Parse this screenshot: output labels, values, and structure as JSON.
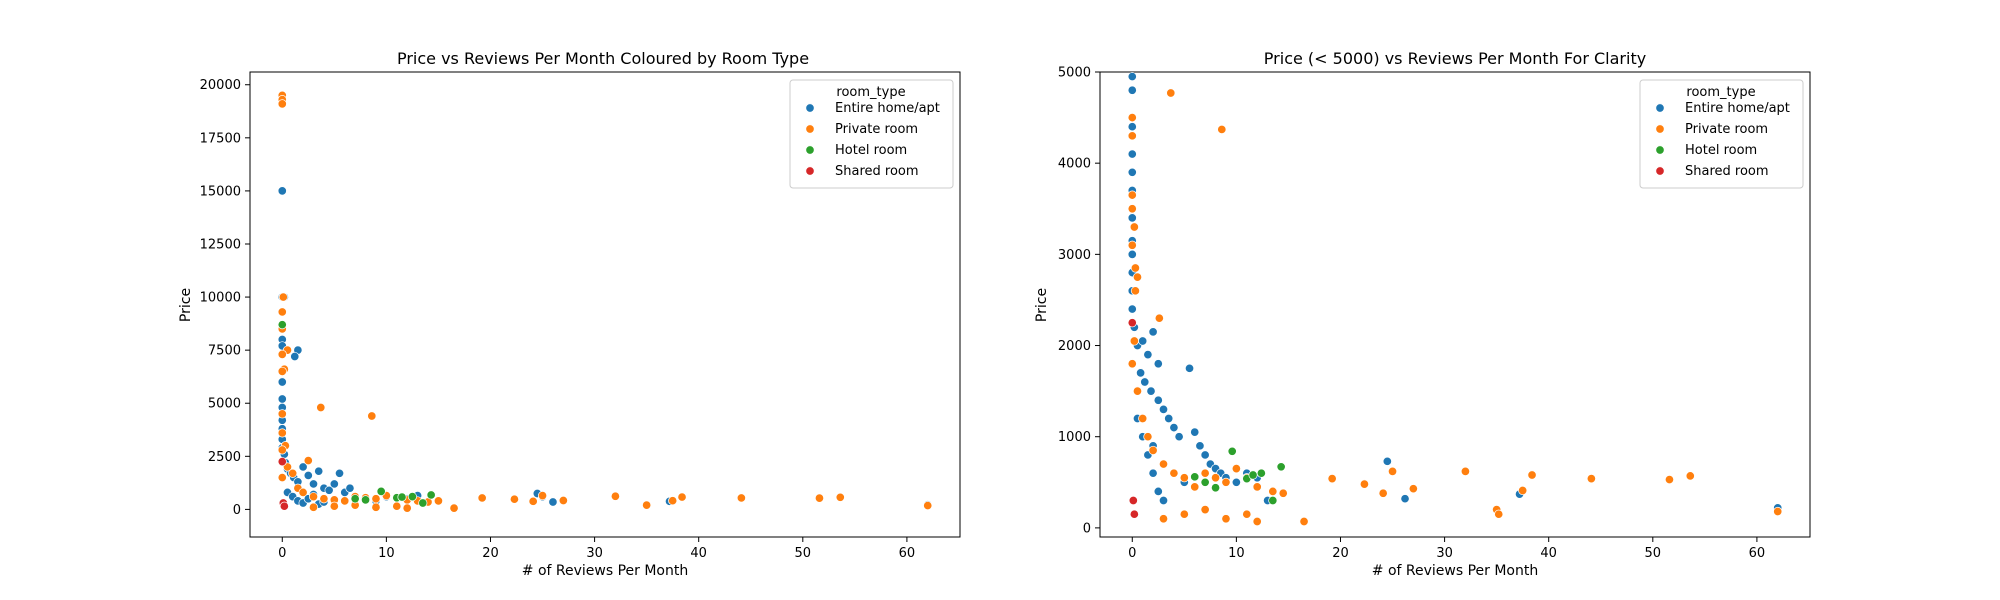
{
  "chart_data": [
    {
      "type": "scatter",
      "title": "Price vs Reviews Per Month Coloured by Room Type",
      "xlabel": "# of Reviews Per Month",
      "ylabel": "Price",
      "xlim": [
        -3.1,
        65.1
      ],
      "ylim": [
        -1300,
        20600
      ],
      "xticks": [
        0,
        10,
        20,
        30,
        40,
        50,
        60
      ],
      "yticks": [
        0,
        2500,
        5000,
        7500,
        10000,
        12500,
        15000,
        17500,
        20000
      ],
      "grid": false,
      "legend": {
        "title": "room_type",
        "position": "top-right",
        "entries": [
          "Entire home/apt",
          "Private room",
          "Hotel room",
          "Shared room"
        ]
      },
      "series": [
        {
          "name": "Entire home/apt",
          "color": "#1f77b4",
          "points": [
            [
              0,
              15000
            ],
            [
              0,
              10000
            ],
            [
              0.2,
              10000
            ],
            [
              0,
              8000
            ],
            [
              0,
              7700
            ],
            [
              1.5,
              7500
            ],
            [
              1.2,
              7200
            ],
            [
              0,
              6000
            ],
            [
              0,
              5200
            ],
            [
              0,
              4800
            ],
            [
              0,
              4200
            ],
            [
              0,
              3800
            ],
            [
              0,
              3300
            ],
            [
              0,
              2900
            ],
            [
              0.2,
              2600
            ],
            [
              0.3,
              2200
            ],
            [
              0.5,
              1900
            ],
            [
              0.8,
              1700
            ],
            [
              1.1,
              1500
            ],
            [
              1.5,
              1300
            ],
            [
              2,
              2000
            ],
            [
              2.5,
              1600
            ],
            [
              3,
              1200
            ],
            [
              3.5,
              1800
            ],
            [
              4,
              1000
            ],
            [
              4.5,
              900
            ],
            [
              5,
              1200
            ],
            [
              5.5,
              1700
            ],
            [
              6,
              800
            ],
            [
              6.5,
              1000
            ],
            [
              7,
              600
            ],
            [
              8,
              500
            ],
            [
              9,
              400
            ],
            [
              10,
              600
            ],
            [
              11,
              550
            ],
            [
              12,
              500
            ],
            [
              13,
              650
            ],
            [
              0.5,
              800
            ],
            [
              1,
              600
            ],
            [
              1.5,
              400
            ],
            [
              2,
              300
            ],
            [
              2.5,
              500
            ],
            [
              3,
              700
            ],
            [
              3.5,
              250
            ],
            [
              4,
              350
            ],
            [
              5,
              450
            ],
            [
              24.5,
              750
            ],
            [
              25,
              600
            ],
            [
              26,
              350
            ],
            [
              37.2,
              380
            ],
            [
              62,
              220
            ]
          ]
        },
        {
          "name": "Private room",
          "color": "#ff7f0e",
          "points": [
            [
              0,
              19500
            ],
            [
              0,
              19300
            ],
            [
              0,
              19100
            ],
            [
              0.1,
              10000
            ],
            [
              0,
              9300
            ],
            [
              0,
              8500
            ],
            [
              0.5,
              7500
            ],
            [
              0,
              7300
            ],
            [
              0.2,
              6600
            ],
            [
              0,
              6500
            ],
            [
              3.7,
              4800
            ],
            [
              8.6,
              4400
            ],
            [
              0,
              4500
            ],
            [
              0,
              3600
            ],
            [
              0.3,
              3000
            ],
            [
              0,
              2800
            ],
            [
              2.5,
              2300
            ],
            [
              0.5,
              2000
            ],
            [
              1,
              1700
            ],
            [
              0,
              1500
            ],
            [
              1.5,
              1000
            ],
            [
              2,
              800
            ],
            [
              3,
              600
            ],
            [
              4,
              500
            ],
            [
              5,
              450
            ],
            [
              6,
              400
            ],
            [
              7,
              600
            ],
            [
              8,
              550
            ],
            [
              9,
              500
            ],
            [
              10,
              650
            ],
            [
              11,
              550
            ],
            [
              12,
              450
            ],
            [
              13,
              400
            ],
            [
              14,
              350
            ],
            [
              15,
              400
            ],
            [
              16.5,
              60
            ],
            [
              19.2,
              540
            ],
            [
              22.3,
              480
            ],
            [
              24.1,
              380
            ],
            [
              25,
              650
            ],
            [
              27,
              420
            ],
            [
              32,
              620
            ],
            [
              35,
              200
            ],
            [
              37.5,
              410
            ],
            [
              38.4,
              580
            ],
            [
              44.1,
              540
            ],
            [
              51.6,
              530
            ],
            [
              53.6,
              570
            ],
            [
              62,
              180
            ],
            [
              3,
              100
            ],
            [
              5,
              150
            ],
            [
              7,
              200
            ],
            [
              9,
              100
            ],
            [
              11,
              150
            ],
            [
              12,
              60
            ]
          ]
        },
        {
          "name": "Hotel room",
          "color": "#2ca02c",
          "points": [
            [
              0,
              8700
            ],
            [
              9.5,
              850
            ],
            [
              11,
              550
            ],
            [
              11.5,
              580
            ],
            [
              12.5,
              600
            ],
            [
              14.3,
              680
            ],
            [
              13.5,
              300
            ],
            [
              7,
              500
            ],
            [
              8,
              450
            ]
          ]
        },
        {
          "name": "Shared room",
          "color": "#d62728",
          "points": [
            [
              0,
              2250
            ],
            [
              0.1,
              300
            ],
            [
              0.2,
              150
            ]
          ]
        }
      ]
    },
    {
      "type": "scatter",
      "title": "Price (< 5000) vs Reviews Per Month For Clarity",
      "xlabel": "# of Reviews Per Month",
      "ylabel": "Price",
      "xlim": [
        -3.1,
        65.1
      ],
      "ylim": [
        -100,
        5000
      ],
      "xticks": [
        0,
        10,
        20,
        30,
        40,
        50,
        60
      ],
      "yticks": [
        0,
        1000,
        2000,
        3000,
        4000,
        5000
      ],
      "grid": false,
      "legend": {
        "title": "room_type",
        "position": "top-right",
        "entries": [
          "Entire home/apt",
          "Private room",
          "Hotel room",
          "Shared room"
        ]
      },
      "series": [
        {
          "name": "Entire home/apt",
          "color": "#1f77b4",
          "points": [
            [
              0,
              4950
            ],
            [
              0,
              4800
            ],
            [
              0,
              4400
            ],
            [
              0,
              4100
            ],
            [
              0,
              3900
            ],
            [
              0,
              3700
            ],
            [
              0,
              3400
            ],
            [
              0,
              3150
            ],
            [
              0,
              3000
            ],
            [
              0,
              2800
            ],
            [
              0,
              2600
            ],
            [
              0,
              2400
            ],
            [
              0.2,
              2200
            ],
            [
              0.5,
              2000
            ],
            [
              1,
              2050
            ],
            [
              1.5,
              1900
            ],
            [
              2,
              2150
            ],
            [
              2.5,
              1800
            ],
            [
              0.8,
              1700
            ],
            [
              1.2,
              1600
            ],
            [
              1.8,
              1500
            ],
            [
              2.5,
              1400
            ],
            [
              3,
              1300
            ],
            [
              3.5,
              1200
            ],
            [
              4,
              1100
            ],
            [
              4.5,
              1000
            ],
            [
              5.5,
              1750
            ],
            [
              6,
              1050
            ],
            [
              6.5,
              900
            ],
            [
              7,
              800
            ],
            [
              7.5,
              700
            ],
            [
              8,
              650
            ],
            [
              8.5,
              600
            ],
            [
              9,
              550
            ],
            [
              10,
              500
            ],
            [
              11,
              600
            ],
            [
              12,
              550
            ],
            [
              13,
              300
            ],
            [
              2,
              900
            ],
            [
              3,
              700
            ],
            [
              4,
              600
            ],
            [
              5,
              500
            ],
            [
              0.5,
              1200
            ],
            [
              1,
              1000
            ],
            [
              1.5,
              800
            ],
            [
              2,
              600
            ],
            [
              2.5,
              400
            ],
            [
              3,
              300
            ],
            [
              24.5,
              730
            ],
            [
              26.2,
              320
            ],
            [
              37.2,
              370
            ],
            [
              62,
              220
            ]
          ]
        },
        {
          "name": "Private room",
          "color": "#ff7f0e",
          "points": [
            [
              3.7,
              4770
            ],
            [
              8.6,
              4370
            ],
            [
              0,
              4500
            ],
            [
              0,
              4300
            ],
            [
              0,
              3650
            ],
            [
              0,
              3500
            ],
            [
              0.2,
              3300
            ],
            [
              0,
              3100
            ],
            [
              0.3,
              2850
            ],
            [
              0.5,
              2750
            ],
            [
              0.3,
              2600
            ],
            [
              2.6,
              2300
            ],
            [
              0.2,
              2050
            ],
            [
              0,
              1800
            ],
            [
              0.5,
              1500
            ],
            [
              1,
              1200
            ],
            [
              1.5,
              1000
            ],
            [
              2,
              850
            ],
            [
              3,
              700
            ],
            [
              4,
              600
            ],
            [
              5,
              550
            ],
            [
              6,
              450
            ],
            [
              7,
              600
            ],
            [
              8,
              550
            ],
            [
              9,
              500
            ],
            [
              10,
              650
            ],
            [
              11,
              550
            ],
            [
              12,
              450
            ],
            [
              13.5,
              400
            ],
            [
              14.5,
              380
            ],
            [
              16.5,
              70
            ],
            [
              19.2,
              540
            ],
            [
              22.3,
              480
            ],
            [
              24.1,
              380
            ],
            [
              25,
              620
            ],
            [
              27,
              430
            ],
            [
              32,
              620
            ],
            [
              35,
              200
            ],
            [
              35.2,
              150
            ],
            [
              37.5,
              410
            ],
            [
              38.4,
              580
            ],
            [
              44.1,
              540
            ],
            [
              51.6,
              530
            ],
            [
              53.6,
              570
            ],
            [
              62,
              180
            ],
            [
              3,
              100
            ],
            [
              5,
              150
            ],
            [
              7,
              200
            ],
            [
              9,
              100
            ],
            [
              11,
              150
            ],
            [
              12,
              70
            ]
          ]
        },
        {
          "name": "Hotel room",
          "color": "#2ca02c",
          "points": [
            [
              9.6,
              840
            ],
            [
              11,
              540
            ],
            [
              11.6,
              580
            ],
            [
              12.4,
              600
            ],
            [
              14.3,
              670
            ],
            [
              13.5,
              300
            ],
            [
              7,
              500
            ],
            [
              8,
              440
            ],
            [
              6,
              560
            ]
          ]
        },
        {
          "name": "Shared room",
          "color": "#d62728",
          "points": [
            [
              0,
              2250
            ],
            [
              0.1,
              300
            ],
            [
              0.2,
              150
            ]
          ]
        }
      ]
    }
  ]
}
